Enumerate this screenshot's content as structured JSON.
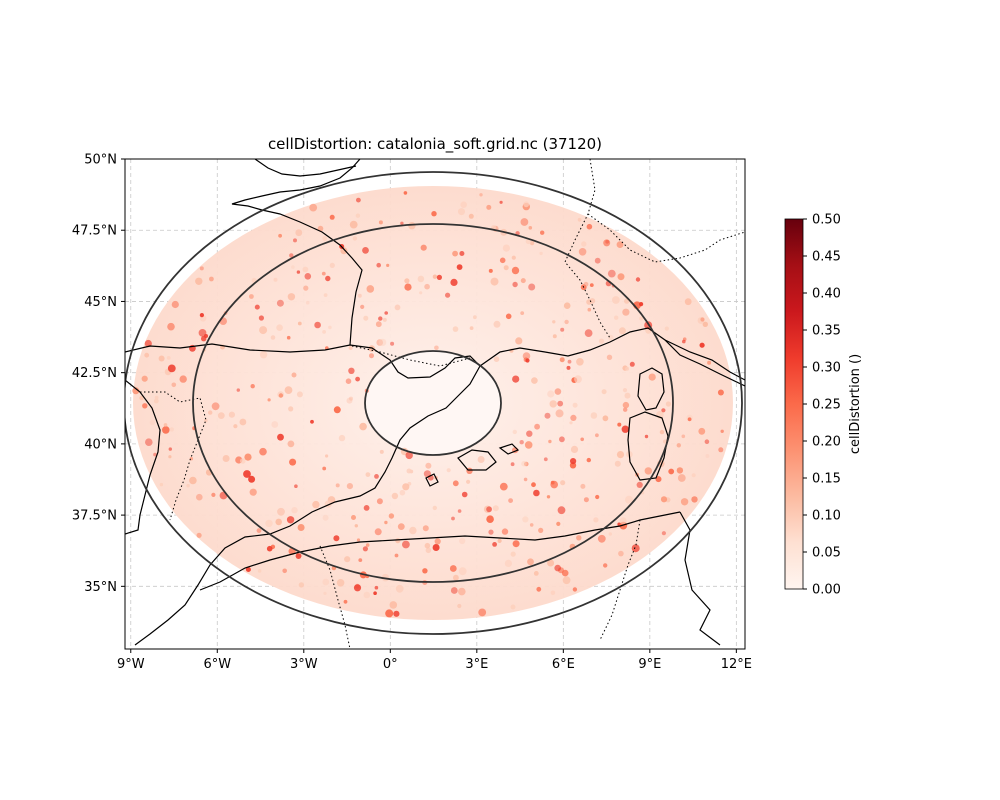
{
  "title": "cellDistortion: catalonia_soft.grid.nc (37120)",
  "map": {
    "lon_range": [
      -9.2,
      12.3
    ],
    "lat_range": [
      32.8,
      50.0
    ],
    "lon_ticks": [
      {
        "value": -9,
        "label": "9°W"
      },
      {
        "value": -6,
        "label": "6°W"
      },
      {
        "value": -3,
        "label": "3°W"
      },
      {
        "value": 0,
        "label": "0°"
      },
      {
        "value": 3,
        "label": "3°E"
      },
      {
        "value": 6,
        "label": "6°E"
      },
      {
        "value": 9,
        "label": "9°E"
      },
      {
        "value": 12,
        "label": "12°E"
      }
    ],
    "lat_ticks": [
      {
        "value": 35,
        "label": "35°N"
      },
      {
        "value": 37.5,
        "label": "37.5°N"
      },
      {
        "value": 40,
        "label": "40°N"
      },
      {
        "value": 42.5,
        "label": "42.5°N"
      },
      {
        "value": 45,
        "label": "45°N"
      },
      {
        "value": 47.5,
        "label": "47.5°N"
      },
      {
        "value": 50,
        "label": "50°N"
      }
    ],
    "grid": true,
    "region_center": [
      1.5,
      41.6
    ],
    "rings": [
      {
        "rx_deg": 2.4,
        "ry_deg": 1.8
      },
      {
        "rx_deg": 8.5,
        "ry_deg": 6.3
      },
      {
        "rx_deg": 10.8,
        "ry_deg": 8.1
      }
    ]
  },
  "colorbar": {
    "label": "cellDistortion ()",
    "min": 0.0,
    "max": 0.5,
    "colormap": "Reds",
    "colors": [
      "#fff5f0",
      "#fee0d2",
      "#fcbba1",
      "#fc9272",
      "#fb6a4a",
      "#ef3b2c",
      "#cb181d",
      "#a50f15",
      "#67000d"
    ],
    "ticks": [
      {
        "value": 0.0,
        "label": "0.00"
      },
      {
        "value": 0.05,
        "label": "0.05"
      },
      {
        "value": 0.1,
        "label": "0.10"
      },
      {
        "value": 0.15,
        "label": "0.15"
      },
      {
        "value": 0.2,
        "label": "0.20"
      },
      {
        "value": 0.25,
        "label": "0.25"
      },
      {
        "value": 0.3,
        "label": "0.30"
      },
      {
        "value": 0.35,
        "label": "0.35"
      },
      {
        "value": 0.4,
        "label": "0.40"
      },
      {
        "value": 0.45,
        "label": "0.45"
      },
      {
        "value": 0.5,
        "label": "0.50"
      }
    ]
  }
}
